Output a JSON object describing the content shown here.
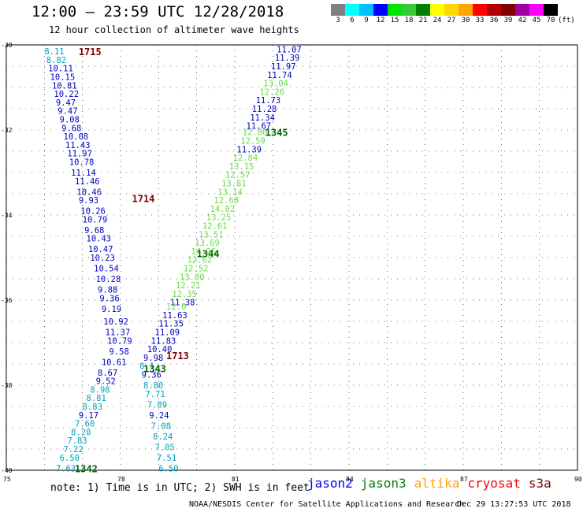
{
  "header": {
    "title": "12:00 – 23:59 UTC 12/28/2018",
    "subtitle": "12 hour collection of altimeter wave heights"
  },
  "legend": {
    "colors": [
      "#808080",
      "#00ffff",
      "#00bfff",
      "#0000ff",
      "#00e600",
      "#33cc33",
      "#008000",
      "#ffff00",
      "#ffd700",
      "#ffa500",
      "#ff0000",
      "#b00000",
      "#800000",
      "#a000a0",
      "#ff00ff",
      "#000000"
    ],
    "labels": [
      "3",
      "6",
      "9",
      "12",
      "15",
      "18",
      "21",
      "24",
      "27",
      "30",
      "33",
      "36",
      "39",
      "42",
      "45",
      "70"
    ],
    "unit": "(ft)"
  },
  "axes": {
    "lat_ticks": [
      "-30",
      "-32",
      "-34",
      "-36",
      "-38",
      "-40"
    ],
    "lon_ticks": [
      "75",
      "78",
      "81",
      "84",
      "87",
      "90"
    ]
  },
  "passes": [
    {
      "label": "1715",
      "lon": 76.9,
      "lat": -30.15,
      "color": "#800000"
    },
    {
      "label": "1714",
      "lon": 78.3,
      "lat": -33.6,
      "color": "#800000"
    },
    {
      "label": "1713",
      "lon": 79.2,
      "lat": -37.3,
      "color": "#800000"
    },
    {
      "label": "1345",
      "lon": 81.8,
      "lat": -32.05,
      "color": "#006400"
    },
    {
      "label": "1344",
      "lon": 80.0,
      "lat": -34.9,
      "color": "#006400"
    },
    {
      "label": "1343",
      "lon": 78.6,
      "lat": -37.6,
      "color": "#006400"
    },
    {
      "label": "1342",
      "lon": 76.8,
      "lat": -39.95,
      "color": "#006400"
    }
  ],
  "tracks": [
    {
      "name": "1715",
      "points": [
        {
          "v": "8.11",
          "lon": 76.0,
          "lat": -30.15,
          "c": "#00a0c0"
        },
        {
          "v": "8.82",
          "lon": 76.05,
          "lat": -30.35,
          "c": "#00a0c0"
        },
        {
          "v": "10.11",
          "lon": 76.1,
          "lat": -30.55,
          "c": "#0000c0"
        },
        {
          "v": "10.15",
          "lon": 76.15,
          "lat": -30.75,
          "c": "#0000c0"
        },
        {
          "v": "10.81",
          "lon": 76.2,
          "lat": -30.95,
          "c": "#0000c0"
        },
        {
          "v": "10.22",
          "lon": 76.25,
          "lat": -31.15,
          "c": "#0000c0"
        },
        {
          "v": "9.47",
          "lon": 76.3,
          "lat": -31.35,
          "c": "#0000c0"
        },
        {
          "v": "9.47",
          "lon": 76.35,
          "lat": -31.55,
          "c": "#0000c0"
        },
        {
          "v": "9.08",
          "lon": 76.4,
          "lat": -31.75,
          "c": "#0000c0"
        },
        {
          "v": "9.68",
          "lon": 76.45,
          "lat": -31.95,
          "c": "#0000c0"
        },
        {
          "v": "10.08",
          "lon": 76.5,
          "lat": -32.15,
          "c": "#0000c0"
        },
        {
          "v": "11.43",
          "lon": 76.55,
          "lat": -32.35,
          "c": "#0000c0"
        },
        {
          "v": "11.97",
          "lon": 76.6,
          "lat": -32.55,
          "c": "#0000c0"
        },
        {
          "v": "10.78",
          "lon": 76.65,
          "lat": -32.75,
          "c": "#0000c0"
        },
        {
          "v": "11.14",
          "lon": 76.7,
          "lat": -33.0,
          "c": "#0000c0"
        },
        {
          "v": "11.46",
          "lon": 76.8,
          "lat": -33.2,
          "c": "#0000c0"
        },
        {
          "v": "10.46",
          "lon": 76.85,
          "lat": -33.45,
          "c": "#0000c0"
        },
        {
          "v": "9.93",
          "lon": 76.9,
          "lat": -33.65,
          "c": "#0000c0"
        },
        {
          "v": "10.26",
          "lon": 76.95,
          "lat": -33.9,
          "c": "#0000c0"
        },
        {
          "v": "10.79",
          "lon": 77.0,
          "lat": -34.1,
          "c": "#0000c0"
        },
        {
          "v": "9.68",
          "lon": 77.05,
          "lat": -34.35,
          "c": "#0000c0"
        },
        {
          "v": "10.43",
          "lon": 77.1,
          "lat": -34.55,
          "c": "#0000c0"
        },
        {
          "v": "10.47",
          "lon": 77.15,
          "lat": -34.8,
          "c": "#0000c0"
        },
        {
          "v": "10.23",
          "lon": 77.2,
          "lat": -35.0,
          "c": "#0000c0"
        },
        {
          "v": "10.54",
          "lon": 77.3,
          "lat": -35.25,
          "c": "#0000c0"
        },
        {
          "v": "10.28",
          "lon": 77.35,
          "lat": -35.5,
          "c": "#0000c0"
        },
        {
          "v": "9.88",
          "lon": 77.4,
          "lat": -35.75,
          "c": "#0000c0"
        },
        {
          "v": "9.36",
          "lon": 77.45,
          "lat": -35.95,
          "c": "#0000c0"
        },
        {
          "v": "9.19",
          "lon": 77.5,
          "lat": -36.2,
          "c": "#0000c0"
        },
        {
          "v": "10.92",
          "lon": 77.55,
          "lat": -36.5,
          "c": "#0000c0"
        },
        {
          "v": "11.37",
          "lon": 77.6,
          "lat": -36.75,
          "c": "#0000c0"
        },
        {
          "v": "10.79",
          "lon": 77.65,
          "lat": -36.95,
          "c": "#0000c0"
        },
        {
          "v": "9.58",
          "lon": 77.7,
          "lat": -37.2,
          "c": "#0000c0"
        },
        {
          "v": "10.61",
          "lon": 77.5,
          "lat": -37.45,
          "c": "#0000c0"
        },
        {
          "v": "8.67",
          "lon": 77.4,
          "lat": -37.7,
          "c": "#0000c0"
        },
        {
          "v": "9.52",
          "lon": 77.35,
          "lat": -37.9,
          "c": "#0000c0"
        }
      ]
    },
    {
      "name": "1714",
      "points": [
        {
          "v": "8.98",
          "lon": 77.2,
          "lat": -38.1,
          "c": "#00a0c0"
        },
        {
          "v": "8.81",
          "lon": 77.1,
          "lat": -38.3,
          "c": "#00a0c0"
        },
        {
          "v": "8.83",
          "lon": 77.0,
          "lat": -38.5,
          "c": "#00a0c0"
        },
        {
          "v": "9.17",
          "lon": 76.9,
          "lat": -38.7,
          "c": "#0000c0"
        },
        {
          "v": "7.60",
          "lon": 76.8,
          "lat": -38.9,
          "c": "#00a0c0"
        },
        {
          "v": "8.20",
          "lon": 76.7,
          "lat": -39.1,
          "c": "#00a0c0"
        },
        {
          "v": "7.83",
          "lon": 76.6,
          "lat": -39.3,
          "c": "#00a0c0"
        },
        {
          "v": "7.22",
          "lon": 76.5,
          "lat": -39.5,
          "c": "#00a0c0"
        },
        {
          "v": "6.50",
          "lon": 76.4,
          "lat": -39.7,
          "c": "#00a0c0"
        },
        {
          "v": "7.63",
          "lon": 76.3,
          "lat": -39.95,
          "c": "#00a0c0"
        }
      ]
    },
    {
      "name": "1345",
      "points": [
        {
          "v": "11.07",
          "lon": 82.1,
          "lat": -30.1,
          "c": "#0000c0"
        },
        {
          "v": "11.39",
          "lon": 82.05,
          "lat": -30.3,
          "c": "#0000c0"
        },
        {
          "v": "11.97",
          "lon": 81.95,
          "lat": -30.5,
          "c": "#0000c0"
        },
        {
          "v": "11.74",
          "lon": 81.85,
          "lat": -30.7,
          "c": "#0000c0"
        },
        {
          "v": "13.04",
          "lon": 81.75,
          "lat": -30.9,
          "c": "#66dd44"
        },
        {
          "v": "12.26",
          "lon": 81.65,
          "lat": -31.1,
          "c": "#66dd44"
        },
        {
          "v": "11.73",
          "lon": 81.55,
          "lat": -31.3,
          "c": "#0000c0"
        },
        {
          "v": "11.28",
          "lon": 81.45,
          "lat": -31.5,
          "c": "#0000c0"
        },
        {
          "v": "11.34",
          "lon": 81.4,
          "lat": -31.7,
          "c": "#0000c0"
        },
        {
          "v": "11.67",
          "lon": 81.3,
          "lat": -31.9,
          "c": "#0000c0"
        },
        {
          "v": "12.80",
          "lon": 81.2,
          "lat": -32.05,
          "c": "#66dd44"
        },
        {
          "v": "12.59",
          "lon": 81.15,
          "lat": -32.25,
          "c": "#66dd44"
        },
        {
          "v": "11.39",
          "lon": 81.05,
          "lat": -32.45,
          "c": "#0000c0"
        },
        {
          "v": "12.84",
          "lon": 80.95,
          "lat": -32.65,
          "c": "#66dd44"
        },
        {
          "v": "13.15",
          "lon": 80.85,
          "lat": -32.85,
          "c": "#66dd44"
        },
        {
          "v": "12.57",
          "lon": 80.75,
          "lat": -33.05,
          "c": "#66dd44"
        },
        {
          "v": "13.81",
          "lon": 80.65,
          "lat": -33.25,
          "c": "#66dd44"
        },
        {
          "v": "13.14",
          "lon": 80.55,
          "lat": -33.45,
          "c": "#66dd44"
        },
        {
          "v": "12.68",
          "lon": 80.45,
          "lat": -33.65,
          "c": "#66dd44"
        },
        {
          "v": "14.02",
          "lon": 80.35,
          "lat": -33.85,
          "c": "#66dd44"
        },
        {
          "v": "13.25",
          "lon": 80.25,
          "lat": -34.05,
          "c": "#66dd44"
        },
        {
          "v": "12.61",
          "lon": 80.15,
          "lat": -34.25,
          "c": "#66dd44"
        },
        {
          "v": "13.51",
          "lon": 80.05,
          "lat": -34.45,
          "c": "#66dd44"
        },
        {
          "v": "13.69",
          "lon": 79.95,
          "lat": -34.65,
          "c": "#66dd44"
        },
        {
          "v": "14.26",
          "lon": 79.85,
          "lat": -34.85,
          "c": "#66dd44"
        },
        {
          "v": "12.62",
          "lon": 79.75,
          "lat": -35.05,
          "c": "#66dd44"
        },
        {
          "v": "12.52",
          "lon": 79.65,
          "lat": -35.25,
          "c": "#66dd44"
        },
        {
          "v": "13.00",
          "lon": 79.55,
          "lat": -35.45,
          "c": "#66dd44"
        },
        {
          "v": "12.21",
          "lon": 79.45,
          "lat": -35.65,
          "c": "#66dd44"
        },
        {
          "v": "12.35",
          "lon": 79.35,
          "lat": -35.85,
          "c": "#66dd44"
        }
      ]
    },
    {
      "name": "1344",
      "points": [
        {
          "v": "11.38",
          "lon": 79.3,
          "lat": -36.05,
          "c": "#0000c0"
        },
        {
          "v": "12.0",
          "lon": 79.2,
          "lat": -36.15,
          "c": "#66dd44"
        },
        {
          "v": "11.63",
          "lon": 79.1,
          "lat": -36.35,
          "c": "#0000c0"
        },
        {
          "v": "11.35",
          "lon": 79.0,
          "lat": -36.55,
          "c": "#0000c0"
        },
        {
          "v": "11.09",
          "lon": 78.9,
          "lat": -36.75,
          "c": "#0000c0"
        },
        {
          "v": "11.83",
          "lon": 78.8,
          "lat": -36.95,
          "c": "#0000c0"
        },
        {
          "v": "10.40",
          "lon": 78.7,
          "lat": -37.15,
          "c": "#0000c0"
        },
        {
          "v": "9.98",
          "lon": 78.6,
          "lat": -37.35,
          "c": "#0000c0"
        },
        {
          "v": "8.1",
          "lon": 78.5,
          "lat": -37.55,
          "c": "#00a0c0"
        },
        {
          "v": "9.36",
          "lon": 78.55,
          "lat": -37.75,
          "c": "#0000c0"
        },
        {
          "v": "8.80",
          "lon": 78.6,
          "lat": -38.0,
          "c": "#00a0c0"
        },
        {
          "v": "7.71",
          "lon": 78.65,
          "lat": -38.2,
          "c": "#00a0c0"
        },
        {
          "v": "7.89",
          "lon": 78.7,
          "lat": -38.45,
          "c": "#00a0c0"
        },
        {
          "v": "9.24",
          "lon": 78.75,
          "lat": -38.7,
          "c": "#0000c0"
        },
        {
          "v": "7.08",
          "lon": 78.8,
          "lat": -38.95,
          "c": "#00a0c0"
        },
        {
          "v": "8.24",
          "lon": 78.85,
          "lat": -39.2,
          "c": "#00a0c0"
        },
        {
          "v": "7.05",
          "lon": 78.9,
          "lat": -39.45,
          "c": "#00a0c0"
        },
        {
          "v": "7.51",
          "lon": 78.95,
          "lat": -39.7,
          "c": "#00a0c0"
        },
        {
          "v": "6.50",
          "lon": 79.0,
          "lat": -39.95,
          "c": "#00a0c0"
        }
      ]
    }
  ],
  "footer": {
    "note": "note: 1) Time is in UTC; 2) SWH is in feet",
    "satellites": [
      {
        "name": "jason2",
        "color": "#0000ff"
      },
      {
        "name": "jason3",
        "color": "#008000"
      },
      {
        "name": "altika",
        "color": "#ffa500"
      },
      {
        "name": "cryosat",
        "color": "#ff0000"
      },
      {
        "name": "s3a",
        "color": "#800000"
      }
    ],
    "credit": "NOAA/NESDIS Center for Satellite Applications and Research",
    "timestamp": "Dec 29 13:27:53 UTC 2018"
  }
}
